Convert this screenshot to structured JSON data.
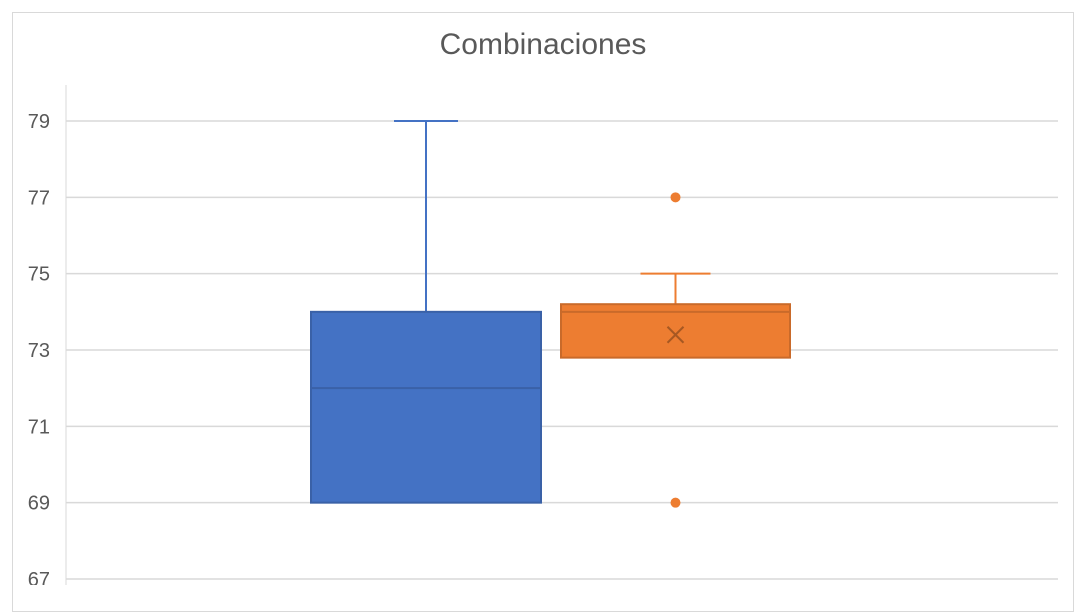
{
  "chart_data": {
    "type": "boxplot",
    "title": "Combinaciones",
    "xlabel": "",
    "ylabel": "",
    "ylim": [
      67,
      80
    ],
    "yticks": [
      67,
      69,
      71,
      73,
      75,
      77,
      79
    ],
    "grid": true,
    "legend": "none",
    "series": [
      {
        "color": "#4472c4",
        "min": 69,
        "q1": 69,
        "median": 72,
        "q3": 74,
        "max": 79,
        "mean": null,
        "outliers": []
      },
      {
        "color": "#ed7d31",
        "min": 72.8,
        "q1": 72.8,
        "median": 74,
        "q3": 74.2,
        "max": 75,
        "mean": 73.4,
        "outliers": [
          77,
          69
        ]
      }
    ]
  }
}
